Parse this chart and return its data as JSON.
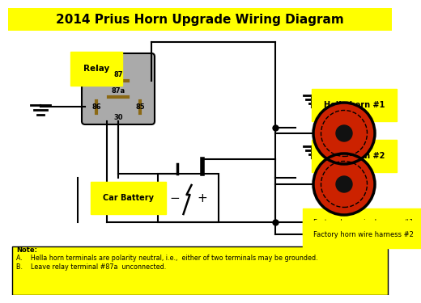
{
  "title": "2014 Prius Horn Upgrade Wiring Diagram",
  "title_fontsize": 11,
  "bg_color": "#ffffff",
  "yellow": "#ffff00",
  "black": "#000000",
  "gray": "#aaaaaa",
  "red_horn": "#cc2200",
  "note_text_bold": "Note:",
  "note_line1": "A.    Hella horn terminals are polarity neutral, i.e.,  either of two terminals may be grounded.",
  "note_line2": "B.    Leave relay terminal #87a  unconnected.",
  "relay_label": "Relay",
  "battery_label": "Car Battery",
  "horn1_label": "Hella horn #1",
  "horn2_label": "Hella horn #2",
  "harness1_label": "Factory horn wire harness #1",
  "harness2_label": "Factory horn wire harness #2"
}
